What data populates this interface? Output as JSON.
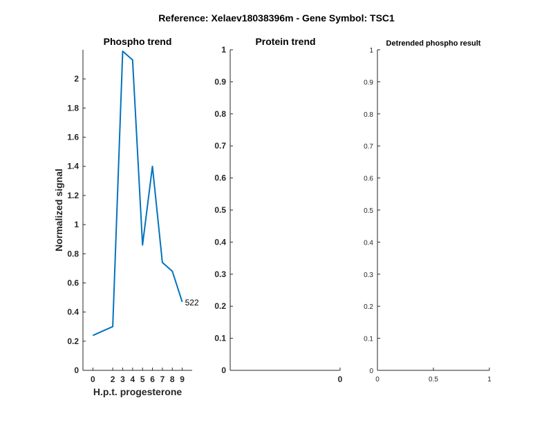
{
  "suptitle": "Reference:  Xelaev18038396m - Gene Symbol:  TSC1",
  "colors": {
    "series": "#0072BD",
    "axis": "#262626"
  },
  "chart_data": [
    {
      "type": "line",
      "title": "Phospho trend",
      "xlabel": "H.p.t. progesterone",
      "ylabel": "Normalized signal",
      "categories": [
        "0",
        "2",
        "3",
        "4",
        "5",
        "6",
        "7",
        "8",
        "9"
      ],
      "y_ticks": [
        "0",
        "0.2",
        "0.4",
        "0.6",
        "0.8",
        "1",
        "1.2",
        "1.4",
        "1.6",
        "1.8",
        "2"
      ],
      "ylim": [
        0,
        2.2
      ],
      "series": [
        {
          "values": [
            0.24,
            0.3,
            2.19,
            2.13,
            0.86,
            1.4,
            0.74,
            0.68,
            0.47
          ]
        }
      ],
      "end_label": "522",
      "grid": false
    },
    {
      "type": "line",
      "title": "Protein trend",
      "xlabel": "",
      "ylabel": "",
      "x_ticks": [
        "0"
      ],
      "y_ticks": [
        "0",
        "0.1",
        "0.2",
        "0.3",
        "0.4",
        "0.5",
        "0.6",
        "0.7",
        "0.8",
        "0.9",
        "1"
      ],
      "ylim": [
        0,
        1
      ],
      "series": [],
      "grid": false
    },
    {
      "type": "line",
      "title": "Detrended phospho result",
      "xlabel": "",
      "ylabel": "",
      "x_ticks": [
        "0",
        "0.5",
        "1"
      ],
      "xlim": [
        0,
        1
      ],
      "y_ticks": [
        "0",
        "0.1",
        "0.2",
        "0.3",
        "0.4",
        "0.5",
        "0.6",
        "0.7",
        "0.8",
        "0.9",
        "1"
      ],
      "ylim": [
        0,
        1
      ],
      "series": [],
      "grid": false
    }
  ]
}
